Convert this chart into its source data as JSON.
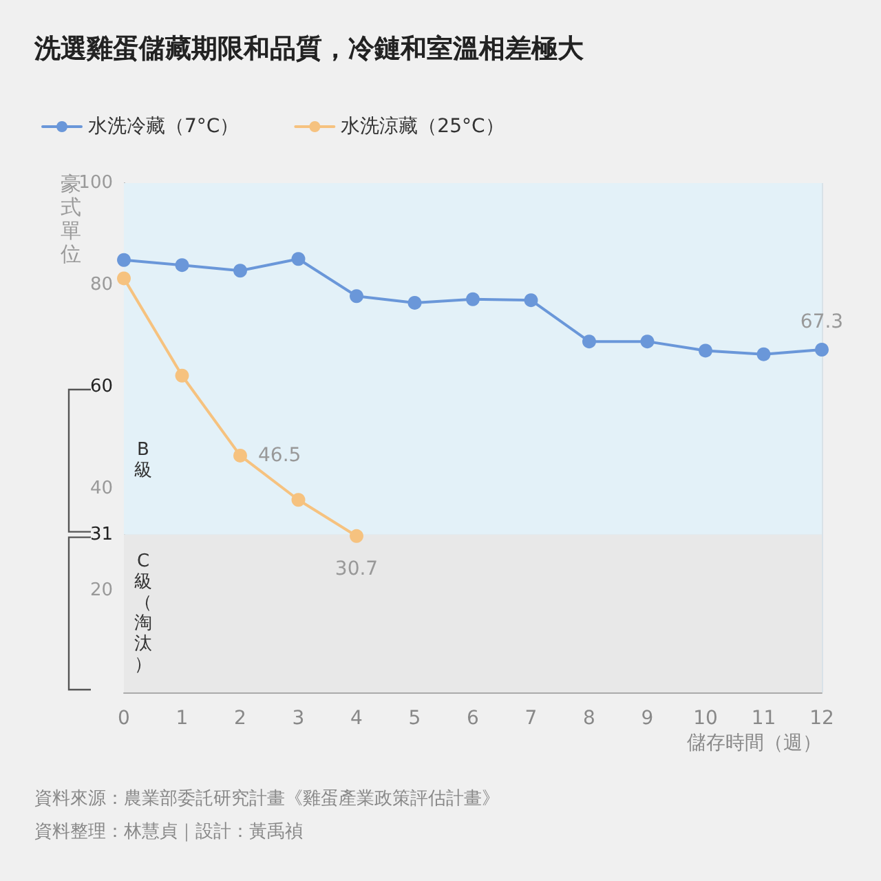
{
  "chart_data": {
    "type": "line",
    "title": "洗選雞蛋儲藏期限和品質，冷鏈和室溫相差極大",
    "xlabel": "儲存時間（週）",
    "ylabel": "豪式單位",
    "x": [
      0,
      1,
      2,
      3,
      4,
      5,
      6,
      7,
      8,
      9,
      10,
      11,
      12
    ],
    "series": [
      {
        "name": "水洗冷藏（7°C）",
        "color": "#6a97d9",
        "values": [
          84.9,
          83.9,
          82.8,
          85.1,
          77.8,
          76.5,
          77.2,
          77.0,
          68.9,
          68.9,
          67.1,
          66.4,
          67.3
        ],
        "value_labels": [
          null,
          null,
          null,
          null,
          null,
          null,
          null,
          null,
          null,
          null,
          null,
          null,
          "67.3"
        ]
      },
      {
        "name": "水洗涼藏（25°C）",
        "color": "#f6c27f",
        "x": [
          0,
          1,
          2,
          3,
          4
        ],
        "values": [
          81.3,
          62.2,
          46.5,
          37.8,
          30.7
        ],
        "value_labels": [
          null,
          null,
          "46.5",
          null,
          "30.7"
        ]
      }
    ],
    "xlim": [
      0,
      12
    ],
    "xticks": [
      0,
      1,
      2,
      3,
      4,
      5,
      6,
      7,
      8,
      9,
      10,
      11,
      12
    ],
    "ylim": [
      0,
      100
    ],
    "yticks": [
      20,
      31,
      40,
      60,
      80,
      100
    ],
    "bands": [
      {
        "axis": "y",
        "from": 60,
        "to": 100,
        "color": "#e3f1f8"
      },
      {
        "axis": "y",
        "from": 0,
        "to": 31,
        "color": "#e8e8e8",
        "label": "C級（淘汰）"
      },
      {
        "axis": "y",
        "from": 31,
        "to": 60,
        "color": "#e3f1f8",
        "label": "B級"
      }
    ],
    "grid": true,
    "legend": "top left",
    "marker": "circle",
    "line_style": "solid",
    "annotations": [
      "資料來源：農業部委託研究計畫《雞蛋產業政策評估計畫》",
      "資料整理：林慧貞｜設計：黃禹禎"
    ]
  }
}
